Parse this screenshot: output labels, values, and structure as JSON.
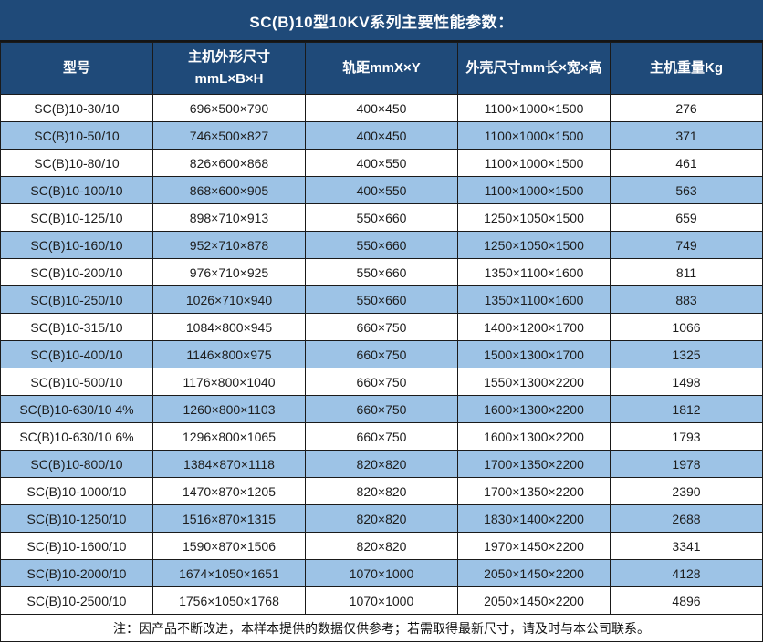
{
  "title": "SC(B)10型10KV系列主要性能参数：",
  "note": "注：因产品不断改进，本样本提供的数据仅供参考；若需取得最新尺寸，请及时与本公司联系。",
  "colors": {
    "header_bg": "#1F4A79",
    "stripe_bg": "#9DC3E6",
    "border": "#1a1a1a",
    "header_text": "#ffffff",
    "body_text": "#1c1c1c"
  },
  "table": {
    "headers": [
      "型号",
      "主机外形尺寸\nmmL×B×H",
      "轨距mmX×Y",
      "外壳尺寸mm长×宽×高",
      "主机重量Kg"
    ],
    "column_keys": [
      "model",
      "host-dimensions",
      "rail-gauge",
      "shell-dimensions",
      "host-weight"
    ],
    "rows": [
      [
        "SC(B)10-30/10",
        "696×500×790",
        "400×450",
        "1100×1000×1500",
        "276"
      ],
      [
        "SC(B)10-50/10",
        "746×500×827",
        "400×450",
        "1100×1000×1500",
        "371"
      ],
      [
        "SC(B)10-80/10",
        "826×600×868",
        "400×550",
        "1100×1000×1500",
        "461"
      ],
      [
        "SC(B)10-100/10",
        "868×600×905",
        "400×550",
        "1100×1000×1500",
        "563"
      ],
      [
        "SC(B)10-125/10",
        "898×710×913",
        "550×660",
        "1250×1050×1500",
        "659"
      ],
      [
        "SC(B)10-160/10",
        "952×710×878",
        "550×660",
        "1250×1050×1500",
        "749"
      ],
      [
        "SC(B)10-200/10",
        "976×710×925",
        "550×660",
        "1350×1100×1600",
        "811"
      ],
      [
        "SC(B)10-250/10",
        "1026×710×940",
        "550×660",
        "1350×1100×1600",
        "883"
      ],
      [
        "SC(B)10-315/10",
        "1084×800×945",
        "660×750",
        "1400×1200×1700",
        "1066"
      ],
      [
        "SC(B)10-400/10",
        "1146×800×975",
        "660×750",
        "1500×1300×1700",
        "1325"
      ],
      [
        "SC(B)10-500/10",
        "1176×800×1040",
        "660×750",
        "1550×1300×2200",
        "1498"
      ],
      [
        "SC(B)10-630/10 4%",
        "1260×800×1103",
        "660×750",
        "1600×1300×2200",
        "1812"
      ],
      [
        "SC(B)10-630/10 6%",
        "1296×800×1065",
        "660×750",
        "1600×1300×2200",
        "1793"
      ],
      [
        "SC(B)10-800/10",
        "1384×870×1118",
        "820×820",
        "1700×1350×2200",
        "1978"
      ],
      [
        "SC(B)10-1000/10",
        "1470×870×1205",
        "820×820",
        "1700×1350×2200",
        "2390"
      ],
      [
        "SC(B)10-1250/10",
        "1516×870×1315",
        "820×820",
        "1830×1400×2200",
        "2688"
      ],
      [
        "SC(B)10-1600/10",
        "1590×870×1506",
        "820×820",
        "1970×1450×2200",
        "3341"
      ],
      [
        "SC(B)10-2000/10",
        "1674×1050×1651",
        "1070×1000",
        "2050×1450×2200",
        "4128"
      ],
      [
        "SC(B)10-2500/10",
        "1756×1050×1768",
        "1070×1000",
        "2050×1450×2200",
        "4896"
      ]
    ]
  }
}
